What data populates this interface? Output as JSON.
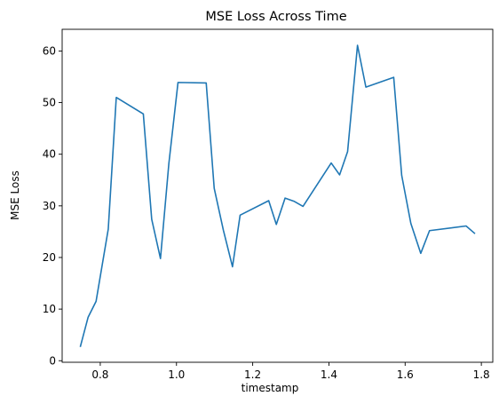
{
  "chart_data": {
    "type": "line",
    "title": "MSE Loss Across Time",
    "xlabel": "timestamp",
    "ylabel": "MSE Loss",
    "xlim": [
      0.7,
      1.83
    ],
    "ylim": [
      -0.3,
      64.2
    ],
    "xticks": [
      0.8,
      1.0,
      1.2,
      1.4,
      1.6,
      1.8
    ],
    "xtick_labels": [
      "0.8",
      "1.0",
      "1.2",
      "1.4",
      "1.6",
      "1.8"
    ],
    "yticks": [
      0,
      10,
      20,
      30,
      40,
      50,
      60
    ],
    "ytick_labels": [
      "0",
      "10",
      "20",
      "30",
      "40",
      "50",
      "60"
    ],
    "grid": false,
    "legend": "none",
    "series": [
      {
        "color": "#1f77b4",
        "x": [
          0.748,
          0.768,
          0.789,
          0.821,
          0.842,
          0.913,
          0.935,
          0.958,
          0.98,
          1.004,
          1.078,
          1.099,
          1.123,
          1.147,
          1.167,
          1.242,
          1.262,
          1.285,
          1.308,
          1.332,
          1.406,
          1.428,
          1.449,
          1.475,
          1.497,
          1.57,
          1.591,
          1.615,
          1.641,
          1.664,
          1.76,
          1.782
        ],
        "y": [
          2.8,
          8.4,
          11.5,
          25.5,
          51.0,
          47.8,
          27.4,
          19.8,
          38.2,
          53.9,
          53.8,
          33.4,
          25.3,
          18.2,
          28.2,
          31.0,
          26.4,
          31.5,
          30.9,
          29.9,
          38.3,
          36.0,
          40.5,
          61.1,
          53.0,
          54.9,
          35.9,
          26.6,
          20.8,
          25.2,
          26.1,
          24.7
        ]
      }
    ]
  }
}
